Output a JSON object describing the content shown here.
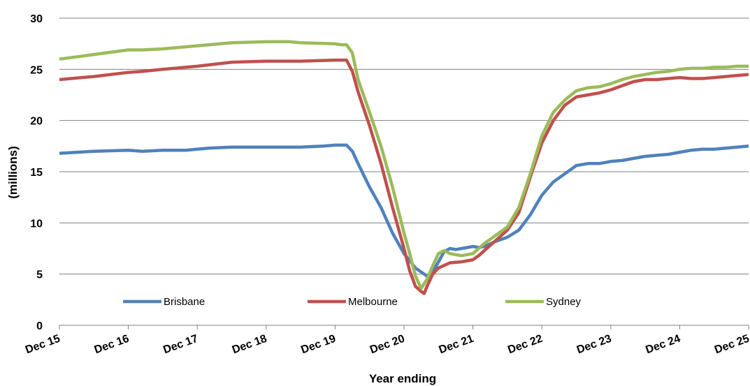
{
  "chart_data": {
    "type": "line",
    "title": "",
    "xlabel": "Year ending",
    "ylabel": "(millions)",
    "ylim": [
      0,
      30
    ],
    "yticks": [
      0,
      5,
      10,
      15,
      20,
      25,
      30
    ],
    "xlim": [
      0,
      120
    ],
    "xticks": [
      {
        "x": 0,
        "label": "Dec 15"
      },
      {
        "x": 12,
        "label": "Dec 16"
      },
      {
        "x": 24,
        "label": "Dec 17"
      },
      {
        "x": 36,
        "label": "Dec 18"
      },
      {
        "x": 48,
        "label": "Dec 19"
      },
      {
        "x": 60,
        "label": "Dec 20"
      },
      {
        "x": 72,
        "label": "Dec 21"
      },
      {
        "x": 84,
        "label": "Dec 22"
      },
      {
        "x": 96,
        "label": "Dec 23"
      },
      {
        "x": 108,
        "label": "Dec 24"
      },
      {
        "x": 120,
        "label": "Dec 25"
      }
    ],
    "grid": true,
    "legend_position": "bottom",
    "series": [
      {
        "name": "Brisbane",
        "color": "#4f81bd",
        "points": [
          [
            0,
            16.8
          ],
          [
            6,
            17.0
          ],
          [
            12,
            17.1
          ],
          [
            14.5,
            17.0
          ],
          [
            18,
            17.1
          ],
          [
            22,
            17.1
          ],
          [
            26,
            17.3
          ],
          [
            30,
            17.4
          ],
          [
            36,
            17.4
          ],
          [
            42,
            17.4
          ],
          [
            46,
            17.5
          ],
          [
            48,
            17.6
          ],
          [
            50,
            17.6
          ],
          [
            51,
            17.0
          ],
          [
            52,
            15.8
          ],
          [
            54,
            13.5
          ],
          [
            56,
            11.5
          ],
          [
            58,
            9.0
          ],
          [
            60,
            7.0
          ],
          [
            62,
            5.6
          ],
          [
            64,
            4.8
          ],
          [
            65,
            5.2
          ],
          [
            66,
            6.2
          ],
          [
            67,
            7.2
          ],
          [
            68,
            7.5
          ],
          [
            69,
            7.4
          ],
          [
            70,
            7.5
          ],
          [
            72,
            7.7
          ],
          [
            73,
            7.6
          ],
          [
            74,
            7.7
          ],
          [
            76,
            8.2
          ],
          [
            78,
            8.6
          ],
          [
            80,
            9.3
          ],
          [
            82,
            10.8
          ],
          [
            84,
            12.7
          ],
          [
            86,
            14.0
          ],
          [
            88,
            14.8
          ],
          [
            90,
            15.6
          ],
          [
            92,
            15.8
          ],
          [
            94,
            15.8
          ],
          [
            96,
            16.0
          ],
          [
            98,
            16.1
          ],
          [
            100,
            16.3
          ],
          [
            102,
            16.5
          ],
          [
            104,
            16.6
          ],
          [
            106,
            16.7
          ],
          [
            108,
            16.9
          ],
          [
            110,
            17.1
          ],
          [
            112,
            17.2
          ],
          [
            114,
            17.2
          ],
          [
            116,
            17.3
          ],
          [
            118,
            17.4
          ],
          [
            120,
            17.5
          ]
        ]
      },
      {
        "name": "Melbourne",
        "color": "#c0504d",
        "points": [
          [
            0,
            24.0
          ],
          [
            6,
            24.3
          ],
          [
            12,
            24.7
          ],
          [
            14.5,
            24.8
          ],
          [
            18,
            25.0
          ],
          [
            24,
            25.3
          ],
          [
            30,
            25.7
          ],
          [
            36,
            25.8
          ],
          [
            42,
            25.8
          ],
          [
            48,
            25.9
          ],
          [
            50,
            25.9
          ],
          [
            51,
            24.8
          ],
          [
            52,
            22.8
          ],
          [
            54,
            19.5
          ],
          [
            56,
            15.8
          ],
          [
            58,
            11.5
          ],
          [
            60,
            7.5
          ],
          [
            61,
            5.3
          ],
          [
            62,
            3.8
          ],
          [
            63,
            3.3
          ],
          [
            63.5,
            3.1
          ],
          [
            64,
            3.8
          ],
          [
            65,
            5.0
          ],
          [
            66,
            5.6
          ],
          [
            68,
            6.1
          ],
          [
            70,
            6.2
          ],
          [
            72,
            6.4
          ],
          [
            73,
            6.8
          ],
          [
            74,
            7.3
          ],
          [
            76,
            8.3
          ],
          [
            78,
            9.3
          ],
          [
            80,
            11.0
          ],
          [
            82,
            14.5
          ],
          [
            84,
            17.8
          ],
          [
            86,
            20.0
          ],
          [
            88,
            21.5
          ],
          [
            90,
            22.3
          ],
          [
            92,
            22.5
          ],
          [
            94,
            22.7
          ],
          [
            96,
            23.0
          ],
          [
            98,
            23.4
          ],
          [
            100,
            23.8
          ],
          [
            102,
            24.0
          ],
          [
            104,
            24.0
          ],
          [
            106,
            24.1
          ],
          [
            108,
            24.2
          ],
          [
            110,
            24.1
          ],
          [
            112,
            24.1
          ],
          [
            114,
            24.2
          ],
          [
            116,
            24.3
          ],
          [
            118,
            24.4
          ],
          [
            120,
            24.5
          ]
        ]
      },
      {
        "name": "Sydney",
        "color": "#9bbb59",
        "points": [
          [
            0,
            26.0
          ],
          [
            4,
            26.3
          ],
          [
            8,
            26.6
          ],
          [
            12,
            26.9
          ],
          [
            14.5,
            26.9
          ],
          [
            18,
            27.0
          ],
          [
            24,
            27.3
          ],
          [
            30,
            27.6
          ],
          [
            36,
            27.7
          ],
          [
            40,
            27.7
          ],
          [
            42,
            27.6
          ],
          [
            48,
            27.5
          ],
          [
            49,
            27.4
          ],
          [
            50,
            27.4
          ],
          [
            51,
            26.6
          ],
          [
            52,
            24.0
          ],
          [
            54,
            20.8
          ],
          [
            56,
            17.5
          ],
          [
            58,
            13.5
          ],
          [
            60,
            9.0
          ],
          [
            61,
            7.0
          ],
          [
            62,
            4.8
          ],
          [
            63,
            3.6
          ],
          [
            64,
            4.5
          ],
          [
            65,
            5.8
          ],
          [
            66,
            7.0
          ],
          [
            67,
            7.3
          ],
          [
            68,
            7.0
          ],
          [
            70,
            6.8
          ],
          [
            72,
            7.0
          ],
          [
            73,
            7.5
          ],
          [
            74,
            8.0
          ],
          [
            76,
            8.8
          ],
          [
            78,
            9.6
          ],
          [
            80,
            11.5
          ],
          [
            82,
            14.8
          ],
          [
            84,
            18.5
          ],
          [
            86,
            20.8
          ],
          [
            88,
            22.0
          ],
          [
            90,
            22.9
          ],
          [
            92,
            23.2
          ],
          [
            94,
            23.3
          ],
          [
            96,
            23.6
          ],
          [
            98,
            24.0
          ],
          [
            100,
            24.3
          ],
          [
            102,
            24.5
          ],
          [
            104,
            24.7
          ],
          [
            106,
            24.8
          ],
          [
            108,
            25.0
          ],
          [
            110,
            25.1
          ],
          [
            112,
            25.1
          ],
          [
            114,
            25.2
          ],
          [
            116,
            25.2
          ],
          [
            118,
            25.3
          ],
          [
            120,
            25.3
          ]
        ]
      }
    ]
  }
}
